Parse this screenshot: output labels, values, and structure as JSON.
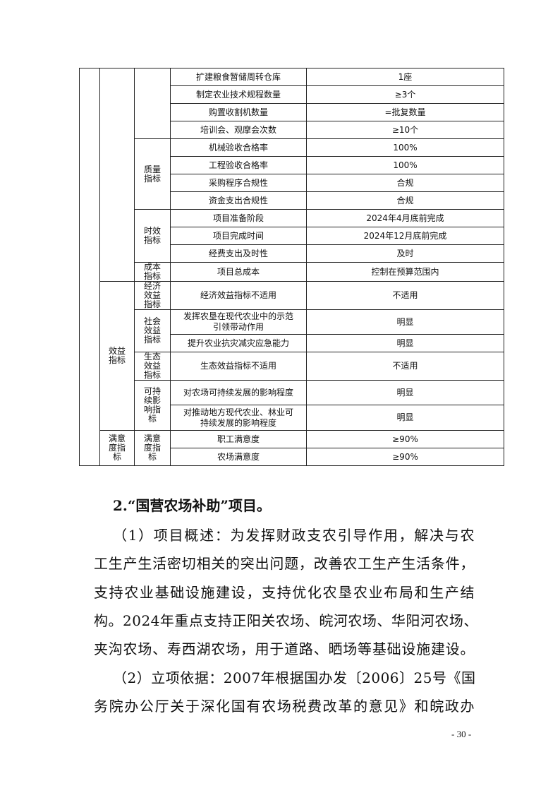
{
  "table": {
    "rows": [
      {
        "indicator": "扩建粮食暂储周转仓库",
        "value": "1座"
      },
      {
        "indicator": "制定农业技术规程数量",
        "value": "≥3个"
      },
      {
        "indicator": "购置收割机数量",
        "value": "=批复数量"
      },
      {
        "indicator": "培训会、观摩会次数",
        "value": "≥10个"
      },
      {
        "indicator": "机械验收合格率",
        "value": "100%"
      },
      {
        "indicator": "工程验收合格率",
        "value": "100%"
      },
      {
        "indicator": "采购程序合规性",
        "value": "合规"
      },
      {
        "indicator": "资金支出合规性",
        "value": "合规"
      },
      {
        "indicator": "项目准备阶段",
        "value": "2024年4月底前完成"
      },
      {
        "indicator": "项目完成时间",
        "value": "2024年12月底前完成"
      },
      {
        "indicator": "经费支出及时性",
        "value": "及时"
      },
      {
        "indicator": "项目总成本",
        "value": "控制在预算范围内"
      },
      {
        "indicator": "经济效益指标不适用",
        "value": "不适用"
      },
      {
        "indicator": "发挥农垦在现代农业中的示范引领带动作用",
        "value": "明显"
      },
      {
        "indicator": "提升农业抗灾减灾应急能力",
        "value": "明显"
      },
      {
        "indicator": "生态效益指标不适用",
        "value": "不适用"
      },
      {
        "indicator": "对农场可持续发展的影响程度",
        "value": "明显"
      },
      {
        "indicator": "对推动地方现代农业、林业可持续发展的影响程度",
        "value": "明显"
      },
      {
        "indicator": "职工满意度",
        "value": "≥90%"
      },
      {
        "indicator": "农场满意度",
        "value": "≥90%"
      }
    ],
    "level2": {
      "benefit": "效益指标",
      "satisfaction": "满意度指标"
    },
    "level3": {
      "quality": "质量指标",
      "timeliness": "时效指标",
      "cost": "成本指标",
      "economic": "经济效益指标",
      "social": "社会效益指标",
      "ecological": "生态效益指标",
      "sustainable": "可持续影响指标",
      "satisfaction": "满意度指标"
    }
  },
  "heading": "2.“国营农场补助”项目。",
  "paragraph_lines": [
    "（1）项目概述：为发挥财政支农引导作用，解决与农",
    "工生产生活密切相关的突出问题，改善农工生产生活条件，",
    "支持农业基础设施建设，支持优化农垦农业布局和生产结",
    "构。2024年重点支持正阳关农场、皖河农场、华阳河农场、",
    "夹沟农场、寿西湖农场，用于道路、晒场等基础设施建设。",
    "（2）立项依据：2007年根据国办发〔2006〕25号《国",
    "务院办公厅关于深化国有农场税费改革的意见》和皖政办"
  ],
  "page_number": "- 30 -"
}
